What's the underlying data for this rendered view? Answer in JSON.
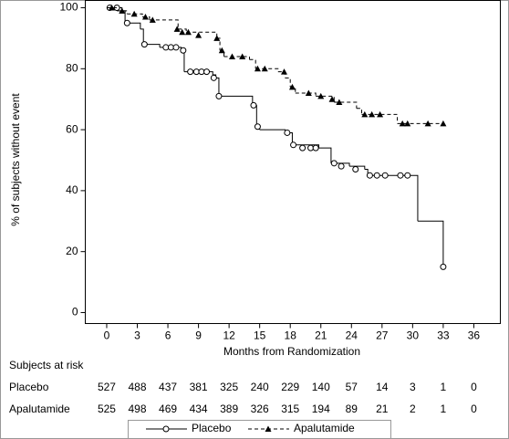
{
  "chart_data": {
    "type": "kaplan-meier",
    "x_label": "Months from Randomization",
    "y_label": "% of subjects without event",
    "xlim": [
      -2.1,
      38.6
    ],
    "ylim": [
      -3.6,
      102.4
    ],
    "xticks": [
      0,
      3,
      6,
      9,
      12,
      15,
      18,
      21,
      24,
      27,
      30,
      33,
      36
    ],
    "yticks": [
      0,
      20,
      40,
      60,
      80,
      100
    ],
    "series": [
      {
        "name": "Placebo",
        "color": "#000000",
        "dash": false,
        "marker": "circle",
        "x": [
          0,
          1.5,
          1.8,
          3.3,
          3.6,
          5.2,
          7.3,
          7.6,
          10.4,
          10.7,
          11.0,
          14.3,
          14.7,
          15.0,
          17.5,
          18.2,
          20.8,
          22.0,
          23.8,
          25.3,
          25.6,
          30.5,
          33.0
        ],
        "values": [
          100,
          99,
          95,
          93,
          88,
          87,
          86,
          79,
          78,
          77,
          71,
          68,
          61,
          60,
          59,
          55,
          54,
          49,
          48,
          47,
          45,
          30,
          15
        ],
        "censor_x": [
          0.3,
          1.0,
          2.0,
          3.7,
          5.8,
          6.3,
          6.8,
          7.5,
          8.2,
          8.8,
          9.3,
          9.8,
          10.5,
          11.0,
          14.4,
          14.8,
          17.7,
          18.3,
          19.2,
          20.0,
          20.5,
          22.3,
          23.0,
          24.4,
          25.8,
          26.5,
          27.3,
          28.8,
          29.5,
          33.0
        ],
        "censor_values": [
          100,
          100,
          95,
          88,
          87,
          87,
          87,
          86,
          79,
          79,
          79,
          79,
          77,
          71,
          68,
          61,
          59,
          55,
          54,
          54,
          54,
          49,
          48,
          47,
          45,
          45,
          45,
          45,
          45,
          15
        ]
      },
      {
        "name": "Apalutamide",
        "color": "#000000",
        "dash": true,
        "marker": "triangle",
        "x": [
          0,
          1.0,
          2.0,
          3.5,
          4.2,
          7.0,
          7.8,
          10.8,
          11.1,
          11.5,
          14.0,
          14.6,
          16.8,
          17.5,
          18.0,
          18.5,
          20.5,
          22.3,
          24.5,
          25.0,
          28.5
        ],
        "values": [
          100,
          99,
          98,
          97,
          96,
          93,
          92,
          90,
          86,
          84,
          83,
          80,
          79,
          77,
          74,
          72,
          71,
          69,
          67,
          65,
          62
        ],
        "censor_x": [
          0.5,
          1.5,
          2.7,
          3.8,
          4.5,
          6.9,
          7.4,
          8.0,
          9.0,
          10.8,
          11.3,
          12.3,
          13.3,
          14.8,
          15.5,
          17.4,
          18.2,
          19.8,
          21.0,
          22.1,
          22.8,
          25.3,
          26.0,
          26.8,
          29.0,
          29.5,
          31.5,
          33.0
        ],
        "censor_values": [
          100,
          99,
          98,
          97,
          96,
          93,
          92,
          92,
          91,
          90,
          86,
          84,
          84,
          80,
          80,
          79,
          74,
          72,
          71,
          70,
          69,
          65,
          65,
          65,
          62,
          62,
          62,
          62
        ]
      }
    ],
    "risk_table": {
      "title": "Subjects at risk",
      "rows": [
        {
          "label": "Placebo",
          "counts": [
            527,
            488,
            437,
            381,
            325,
            240,
            229,
            140,
            57,
            14,
            3,
            1,
            0
          ]
        },
        {
          "label": "Apalutamide",
          "counts": [
            525,
            498,
            469,
            434,
            389,
            326,
            315,
            194,
            89,
            21,
            2,
            1,
            0
          ]
        }
      ]
    }
  }
}
